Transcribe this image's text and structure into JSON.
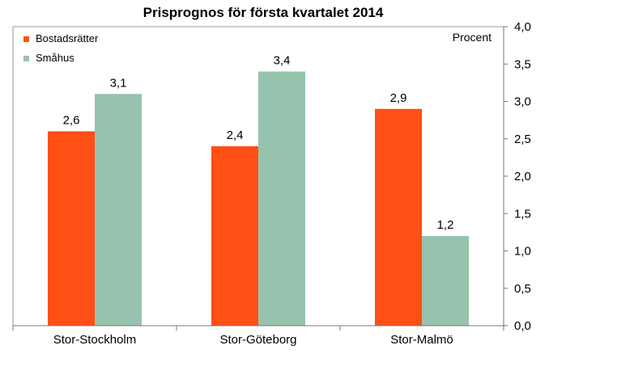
{
  "chart_data": {
    "type": "bar",
    "title": "Prisprognos för första kvartalet 2014",
    "unit_label": "Procent",
    "categories": [
      "Stor-Stockholm",
      "Stor-Göteborg",
      "Stor-Malmö"
    ],
    "series": [
      {
        "name": "Bostadsrätter",
        "values": [
          2.6,
          2.4,
          2.9
        ],
        "labels": [
          "2,6",
          "2,4",
          "2,9"
        ],
        "color": "#ff4f14"
      },
      {
        "name": "Småhus",
        "values": [
          3.1,
          3.4,
          1.2
        ],
        "labels": [
          "3,1",
          "3,4",
          "1,2"
        ],
        "color": "#96c3ae"
      }
    ],
    "ylim": [
      0,
      4
    ],
    "y_ticks": [
      "0,0",
      "0,5",
      "1,0",
      "1,5",
      "2,0",
      "2,5",
      "3,0",
      "3,5",
      "4,0"
    ],
    "y_axis_side": "right",
    "grid": false,
    "legend_position": "top-left"
  }
}
